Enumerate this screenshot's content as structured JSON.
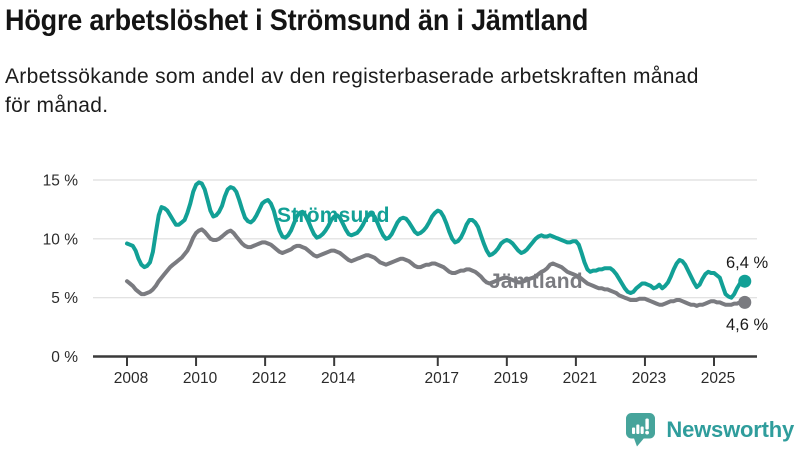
{
  "header": {
    "title": "Högre arbetslöshet i Strömsund än i Jämtland",
    "subtitle_line1": "Arbetssökande som andel av den registerbaserade arbetskraften månad",
    "subtitle_line2": "för månad."
  },
  "logo": {
    "text": "Newsworthy",
    "icon": "newsworthy-speech-bubble-bar-chart-icon",
    "color": "#2f9d9c",
    "icon_color": "#46a49b"
  },
  "chart_data": {
    "type": "line",
    "title": "Högre arbetslöshet i Strömsund än i Jämtland",
    "subtitle": "Arbetssökande som andel av den registerbaserade arbetskraften månad för månad.",
    "unit": "%",
    "x_start": "2008-01",
    "x_end": "2025-11",
    "x_interval": "monthly",
    "ylim": [
      0,
      15
    ],
    "grid": true,
    "legend_position": "inline-labels",
    "axis_color": "#3a3a3a",
    "grid_color": "#dedede",
    "tick_label_color": "#2b2b2b",
    "yticks": [
      {
        "value": 0,
        "label": "0 %"
      },
      {
        "value": 5,
        "label": "5 %"
      },
      {
        "value": 10,
        "label": "10 %"
      },
      {
        "value": 15,
        "label": "15 %"
      }
    ],
    "xticks": [
      {
        "year": 2008,
        "label": "2008"
      },
      {
        "year": 2010,
        "label": "2010"
      },
      {
        "year": 2012,
        "label": "2012"
      },
      {
        "year": 2014,
        "label": "2014"
      },
      {
        "year": 2017,
        "label": "2017"
      },
      {
        "year": 2019,
        "label": "2019"
      },
      {
        "year": 2021,
        "label": "2021"
      },
      {
        "year": 2023,
        "label": "2023"
      },
      {
        "year": 2025,
        "label": "2025"
      }
    ],
    "series": [
      {
        "name": "Strömsund",
        "color": "#12a096",
        "end_label": "6,4 %",
        "end_value": 6.4,
        "values": [
          9.6,
          9.5,
          9.4,
          9.0,
          8.3,
          7.8,
          7.6,
          7.7,
          8.0,
          8.9,
          10.5,
          12.0,
          12.7,
          12.6,
          12.4,
          12.0,
          11.6,
          11.2,
          11.2,
          11.4,
          11.6,
          12.2,
          13.0,
          14.0,
          14.6,
          14.8,
          14.7,
          14.2,
          13.3,
          12.4,
          11.9,
          12.0,
          12.3,
          12.8,
          13.6,
          14.2,
          14.4,
          14.3,
          14.0,
          13.3,
          12.5,
          11.8,
          11.5,
          11.4,
          11.6,
          12.0,
          12.5,
          13.0,
          13.2,
          13.3,
          13.0,
          12.4,
          11.5,
          10.7,
          10.2,
          10.1,
          10.3,
          10.7,
          11.3,
          11.9,
          12.2,
          12.3,
          12.0,
          11.5,
          10.9,
          10.4,
          10.1,
          10.2,
          10.4,
          10.7,
          11.1,
          11.6,
          11.9,
          12.0,
          11.8,
          11.3,
          10.8,
          10.4,
          10.3,
          10.4,
          10.5,
          10.8,
          11.2,
          11.7,
          12.0,
          12.1,
          11.9,
          11.4,
          10.8,
          10.3,
          10.0,
          10.1,
          10.4,
          10.9,
          11.4,
          11.7,
          11.8,
          11.7,
          11.4,
          11.0,
          10.6,
          10.4,
          10.5,
          10.7,
          11.0,
          11.4,
          11.9,
          12.2,
          12.4,
          12.3,
          11.9,
          11.3,
          10.6,
          10.0,
          9.7,
          9.8,
          10.1,
          10.6,
          11.2,
          11.6,
          11.6,
          11.4,
          11.0,
          10.3,
          9.6,
          9.0,
          8.6,
          8.7,
          8.9,
          9.2,
          9.6,
          9.8,
          9.9,
          9.8,
          9.6,
          9.3,
          9.0,
          8.8,
          8.9,
          9.1,
          9.4,
          9.7,
          10.0,
          10.2,
          10.3,
          10.2,
          10.2,
          10.3,
          10.2,
          10.1,
          10.0,
          9.9,
          9.8,
          9.7,
          9.7,
          9.8,
          9.8,
          9.5,
          8.8,
          8.0,
          7.4,
          7.2,
          7.3,
          7.3,
          7.4,
          7.4,
          7.5,
          7.5,
          7.5,
          7.3,
          7.0,
          6.6,
          6.2,
          5.8,
          5.5,
          5.4,
          5.5,
          5.8,
          6.0,
          6.2,
          6.2,
          6.1,
          6.0,
          5.8,
          5.9,
          6.1,
          5.8,
          6.0,
          6.3,
          6.8,
          7.4,
          7.9,
          8.2,
          8.1,
          7.8,
          7.3,
          6.8,
          6.3,
          5.9,
          6.1,
          6.6,
          7.0,
          7.2,
          7.1,
          7.1,
          6.9,
          6.7,
          6.0,
          5.3,
          5.1,
          5.0,
          5.3,
          5.8,
          6.2,
          6.4
        ]
      },
      {
        "name": "Jämtland",
        "color": "#7a7b80",
        "end_label": "4,6 %",
        "end_value": 4.6,
        "values": [
          6.4,
          6.2,
          6.0,
          5.7,
          5.5,
          5.3,
          5.3,
          5.4,
          5.5,
          5.7,
          6.0,
          6.4,
          6.7,
          7.0,
          7.3,
          7.6,
          7.8,
          8.0,
          8.2,
          8.4,
          8.7,
          9.0,
          9.5,
          10.1,
          10.5,
          10.7,
          10.8,
          10.6,
          10.3,
          10.0,
          9.9,
          9.9,
          10.0,
          10.2,
          10.4,
          10.6,
          10.7,
          10.5,
          10.2,
          9.9,
          9.6,
          9.4,
          9.3,
          9.3,
          9.4,
          9.5,
          9.6,
          9.7,
          9.7,
          9.6,
          9.5,
          9.3,
          9.1,
          8.9,
          8.8,
          8.9,
          9.0,
          9.1,
          9.3,
          9.4,
          9.4,
          9.3,
          9.2,
          9.0,
          8.8,
          8.6,
          8.5,
          8.6,
          8.7,
          8.8,
          8.9,
          9.0,
          9.0,
          8.9,
          8.8,
          8.6,
          8.4,
          8.2,
          8.1,
          8.2,
          8.3,
          8.4,
          8.5,
          8.6,
          8.6,
          8.5,
          8.4,
          8.2,
          8.0,
          7.9,
          7.8,
          7.9,
          8.0,
          8.1,
          8.2,
          8.3,
          8.3,
          8.2,
          8.1,
          7.9,
          7.7,
          7.6,
          7.6,
          7.7,
          7.8,
          7.8,
          7.9,
          7.9,
          7.8,
          7.7,
          7.6,
          7.4,
          7.2,
          7.1,
          7.1,
          7.2,
          7.3,
          7.3,
          7.4,
          7.4,
          7.3,
          7.2,
          7.0,
          6.8,
          6.5,
          6.3,
          6.2,
          6.3,
          6.4,
          6.5,
          6.6,
          6.7,
          6.7,
          6.6,
          6.5,
          6.4,
          6.3,
          6.3,
          6.4,
          6.5,
          6.6,
          6.7,
          6.8,
          7.0,
          7.2,
          7.3,
          7.5,
          7.8,
          7.9,
          7.8,
          7.7,
          7.6,
          7.4,
          7.2,
          7.1,
          7.0,
          6.9,
          6.8,
          6.6,
          6.4,
          6.2,
          6.1,
          6.0,
          5.9,
          5.8,
          5.8,
          5.7,
          5.7,
          5.6,
          5.5,
          5.4,
          5.2,
          5.1,
          5.0,
          4.9,
          4.8,
          4.8,
          4.8,
          4.9,
          4.9,
          4.9,
          4.8,
          4.7,
          4.6,
          4.5,
          4.4,
          4.4,
          4.5,
          4.6,
          4.7,
          4.7,
          4.8,
          4.8,
          4.7,
          4.6,
          4.5,
          4.4,
          4.4,
          4.3,
          4.4,
          4.4,
          4.5,
          4.6,
          4.7,
          4.7,
          4.6,
          4.6,
          4.5,
          4.4,
          4.4,
          4.4,
          4.5,
          4.5,
          4.6,
          4.6
        ]
      }
    ]
  }
}
